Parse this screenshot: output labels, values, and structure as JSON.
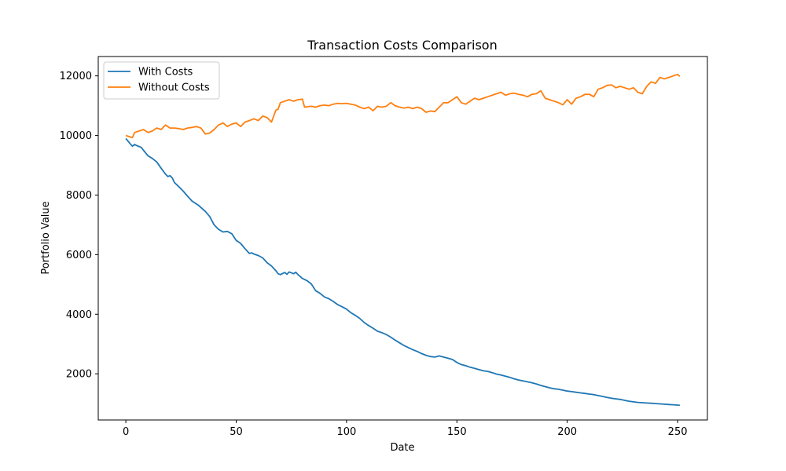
{
  "chart_data": {
    "type": "line",
    "title": "Transaction Costs Comparison",
    "xlabel": "Date",
    "ylabel": "Portfolio Value",
    "xlim": [
      -12.5,
      263.5
    ],
    "ylim": [
      450,
      12650
    ],
    "xticks": [
      0,
      50,
      100,
      150,
      200,
      250
    ],
    "yticks": [
      2000,
      4000,
      6000,
      8000,
      10000,
      12000
    ],
    "grid": false,
    "legend_position": "top-left",
    "series": [
      {
        "name": "With Costs",
        "color": "#1f77b4",
        "points": [
          [
            0,
            9900
          ],
          [
            2,
            9720
          ],
          [
            3,
            9640
          ],
          [
            4,
            9700
          ],
          [
            5,
            9660
          ],
          [
            7,
            9600
          ],
          [
            8,
            9500
          ],
          [
            10,
            9320
          ],
          [
            12,
            9230
          ],
          [
            14,
            9110
          ],
          [
            16,
            8900
          ],
          [
            18,
            8700
          ],
          [
            19,
            8620
          ],
          [
            20,
            8650
          ],
          [
            21,
            8580
          ],
          [
            22,
            8420
          ],
          [
            24,
            8280
          ],
          [
            26,
            8130
          ],
          [
            28,
            7960
          ],
          [
            30,
            7800
          ],
          [
            33,
            7650
          ],
          [
            36,
            7450
          ],
          [
            38,
            7280
          ],
          [
            40,
            7000
          ],
          [
            42,
            6850
          ],
          [
            44,
            6760
          ],
          [
            46,
            6780
          ],
          [
            48,
            6700
          ],
          [
            50,
            6480
          ],
          [
            52,
            6380
          ],
          [
            54,
            6200
          ],
          [
            56,
            6040
          ],
          [
            57,
            6060
          ],
          [
            58,
            6020
          ],
          [
            60,
            5970
          ],
          [
            62,
            5890
          ],
          [
            64,
            5730
          ],
          [
            66,
            5620
          ],
          [
            68,
            5460
          ],
          [
            69,
            5360
          ],
          [
            70,
            5330
          ],
          [
            72,
            5400
          ],
          [
            73,
            5340
          ],
          [
            74,
            5420
          ],
          [
            76,
            5360
          ],
          [
            77,
            5410
          ],
          [
            78,
            5330
          ],
          [
            80,
            5200
          ],
          [
            82,
            5130
          ],
          [
            84,
            5020
          ],
          [
            86,
            4790
          ],
          [
            88,
            4700
          ],
          [
            90,
            4580
          ],
          [
            92,
            4520
          ],
          [
            94,
            4430
          ],
          [
            96,
            4320
          ],
          [
            98,
            4250
          ],
          [
            100,
            4170
          ],
          [
            102,
            4050
          ],
          [
            104,
            3960
          ],
          [
            106,
            3860
          ],
          [
            108,
            3720
          ],
          [
            110,
            3620
          ],
          [
            112,
            3530
          ],
          [
            114,
            3430
          ],
          [
            116,
            3380
          ],
          [
            118,
            3320
          ],
          [
            120,
            3230
          ],
          [
            122,
            3130
          ],
          [
            124,
            3040
          ],
          [
            126,
            2950
          ],
          [
            128,
            2880
          ],
          [
            130,
            2810
          ],
          [
            132,
            2750
          ],
          [
            134,
            2680
          ],
          [
            136,
            2620
          ],
          [
            138,
            2580
          ],
          [
            140,
            2560
          ],
          [
            142,
            2600
          ],
          [
            144,
            2560
          ],
          [
            146,
            2520
          ],
          [
            148,
            2480
          ],
          [
            150,
            2380
          ],
          [
            152,
            2310
          ],
          [
            154,
            2270
          ],
          [
            156,
            2220
          ],
          [
            158,
            2180
          ],
          [
            160,
            2140
          ],
          [
            162,
            2100
          ],
          [
            164,
            2080
          ],
          [
            166,
            2040
          ],
          [
            168,
            1990
          ],
          [
            170,
            1960
          ],
          [
            172,
            1920
          ],
          [
            174,
            1880
          ],
          [
            176,
            1830
          ],
          [
            178,
            1790
          ],
          [
            180,
            1760
          ],
          [
            182,
            1730
          ],
          [
            184,
            1700
          ],
          [
            186,
            1660
          ],
          [
            188,
            1610
          ],
          [
            190,
            1570
          ],
          [
            192,
            1530
          ],
          [
            194,
            1500
          ],
          [
            196,
            1480
          ],
          [
            198,
            1450
          ],
          [
            200,
            1420
          ],
          [
            202,
            1400
          ],
          [
            204,
            1380
          ],
          [
            206,
            1360
          ],
          [
            208,
            1340
          ],
          [
            210,
            1320
          ],
          [
            212,
            1300
          ],
          [
            214,
            1270
          ],
          [
            216,
            1240
          ],
          [
            218,
            1210
          ],
          [
            220,
            1180
          ],
          [
            222,
            1160
          ],
          [
            224,
            1140
          ],
          [
            226,
            1110
          ],
          [
            228,
            1080
          ],
          [
            230,
            1060
          ],
          [
            232,
            1040
          ],
          [
            234,
            1030
          ],
          [
            236,
            1020
          ],
          [
            238,
            1010
          ],
          [
            240,
            1000
          ],
          [
            242,
            990
          ],
          [
            244,
            980
          ],
          [
            246,
            970
          ],
          [
            248,
            960
          ],
          [
            250,
            950
          ],
          [
            251,
            940
          ]
        ]
      },
      {
        "name": "Without Costs",
        "color": "#ff7f0e",
        "points": [
          [
            0,
            10000
          ],
          [
            2,
            9950
          ],
          [
            3,
            9930
          ],
          [
            4,
            10100
          ],
          [
            6,
            10150
          ],
          [
            8,
            10200
          ],
          [
            10,
            10100
          ],
          [
            12,
            10150
          ],
          [
            14,
            10250
          ],
          [
            16,
            10200
          ],
          [
            18,
            10350
          ],
          [
            20,
            10250
          ],
          [
            22,
            10250
          ],
          [
            24,
            10230
          ],
          [
            26,
            10200
          ],
          [
            28,
            10250
          ],
          [
            30,
            10270
          ],
          [
            32,
            10300
          ],
          [
            34,
            10250
          ],
          [
            36,
            10050
          ],
          [
            38,
            10080
          ],
          [
            40,
            10200
          ],
          [
            42,
            10350
          ],
          [
            44,
            10420
          ],
          [
            46,
            10300
          ],
          [
            48,
            10380
          ],
          [
            50,
            10420
          ],
          [
            52,
            10300
          ],
          [
            54,
            10450
          ],
          [
            56,
            10500
          ],
          [
            58,
            10560
          ],
          [
            60,
            10500
          ],
          [
            62,
            10650
          ],
          [
            64,
            10600
          ],
          [
            66,
            10450
          ],
          [
            68,
            10850
          ],
          [
            69,
            10880
          ],
          [
            70,
            11100
          ],
          [
            72,
            11150
          ],
          [
            74,
            11200
          ],
          [
            76,
            11150
          ],
          [
            78,
            11200
          ],
          [
            80,
            11220
          ],
          [
            81,
            10950
          ],
          [
            84,
            10980
          ],
          [
            86,
            10950
          ],
          [
            88,
            11000
          ],
          [
            90,
            11020
          ],
          [
            92,
            11000
          ],
          [
            94,
            11050
          ],
          [
            96,
            11080
          ],
          [
            98,
            11070
          ],
          [
            100,
            11080
          ],
          [
            102,
            11050
          ],
          [
            104,
            11020
          ],
          [
            106,
            10950
          ],
          [
            108,
            10900
          ],
          [
            110,
            10950
          ],
          [
            112,
            10830
          ],
          [
            114,
            10980
          ],
          [
            116,
            10950
          ],
          [
            118,
            10980
          ],
          [
            120,
            11100
          ],
          [
            122,
            11000
          ],
          [
            124,
            10950
          ],
          [
            126,
            10920
          ],
          [
            128,
            10950
          ],
          [
            130,
            10900
          ],
          [
            132,
            10950
          ],
          [
            134,
            10900
          ],
          [
            136,
            10780
          ],
          [
            138,
            10820
          ],
          [
            140,
            10800
          ],
          [
            142,
            10950
          ],
          [
            144,
            11100
          ],
          [
            146,
            11100
          ],
          [
            148,
            11200
          ],
          [
            150,
            11300
          ],
          [
            152,
            11100
          ],
          [
            154,
            11050
          ],
          [
            156,
            11150
          ],
          [
            158,
            11250
          ],
          [
            160,
            11200
          ],
          [
            162,
            11250
          ],
          [
            164,
            11300
          ],
          [
            166,
            11350
          ],
          [
            168,
            11400
          ],
          [
            170,
            11450
          ],
          [
            172,
            11350
          ],
          [
            174,
            11400
          ],
          [
            176,
            11420
          ],
          [
            178,
            11380
          ],
          [
            180,
            11350
          ],
          [
            182,
            11300
          ],
          [
            184,
            11380
          ],
          [
            186,
            11400
          ],
          [
            188,
            11500
          ],
          [
            190,
            11250
          ],
          [
            192,
            11200
          ],
          [
            194,
            11150
          ],
          [
            196,
            11100
          ],
          [
            198,
            11030
          ],
          [
            200,
            11200
          ],
          [
            202,
            11050
          ],
          [
            204,
            11250
          ],
          [
            206,
            11300
          ],
          [
            208,
            11380
          ],
          [
            210,
            11380
          ],
          [
            212,
            11300
          ],
          [
            214,
            11550
          ],
          [
            216,
            11600
          ],
          [
            218,
            11680
          ],
          [
            220,
            11700
          ],
          [
            222,
            11600
          ],
          [
            224,
            11650
          ],
          [
            226,
            11600
          ],
          [
            228,
            11550
          ],
          [
            230,
            11600
          ],
          [
            232,
            11450
          ],
          [
            234,
            11400
          ],
          [
            236,
            11650
          ],
          [
            238,
            11800
          ],
          [
            240,
            11750
          ],
          [
            242,
            11950
          ],
          [
            244,
            11900
          ],
          [
            246,
            11950
          ],
          [
            248,
            12000
          ],
          [
            250,
            12050
          ],
          [
            251,
            11980
          ]
        ]
      }
    ]
  }
}
